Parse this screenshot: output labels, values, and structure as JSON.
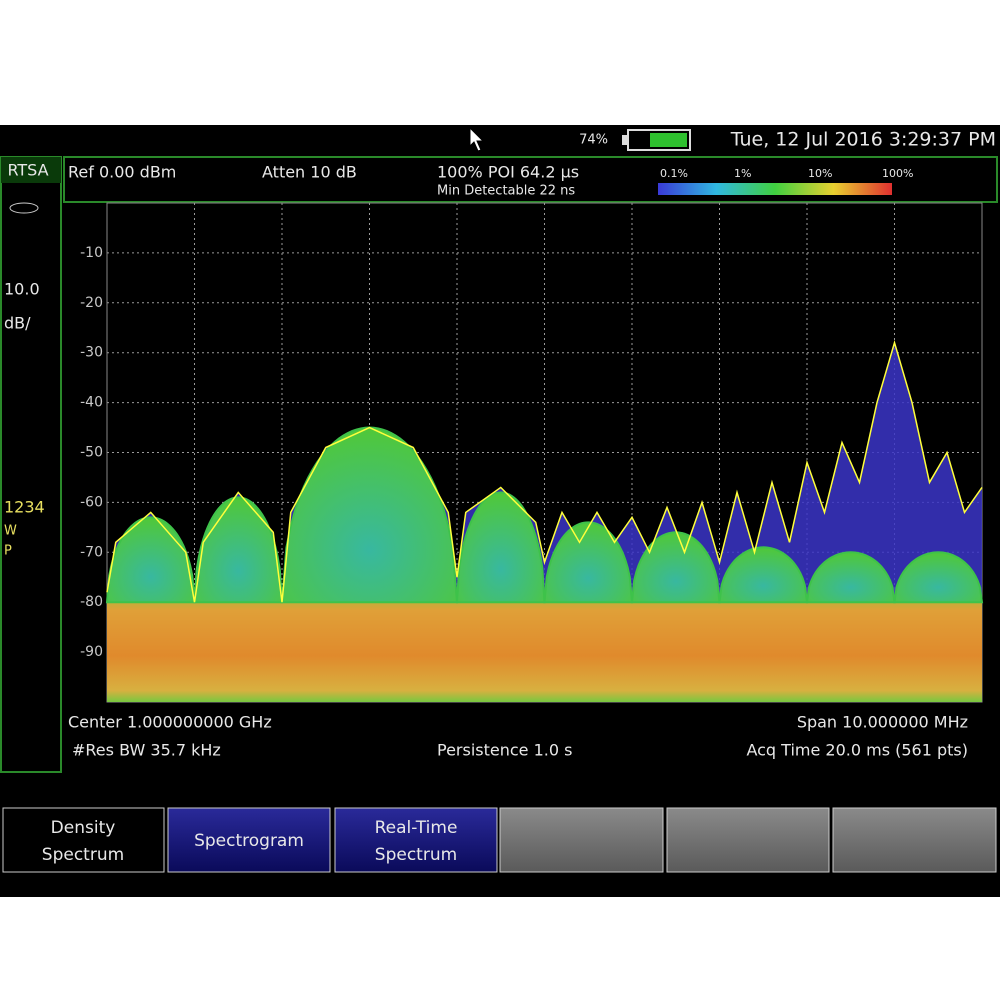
{
  "status": {
    "battery": "74%",
    "datetime": "Tue, 12 Jul 2016 3:29:37 PM"
  },
  "mode": "RTSA",
  "left_panel": {
    "scale": "10.0",
    "scale_unit": "dB/",
    "traces": "1234",
    "trace_w": "W",
    "trace_p": "P"
  },
  "header": {
    "ref": "Ref 0.00 dBm",
    "atten": "Atten 10 dB",
    "poi": "100% POI 64.2 µs",
    "min_detectable": "Min Detectable 22 ns",
    "scale_labels": [
      "0.1%",
      "1%",
      "10%",
      "100%"
    ]
  },
  "plot": {
    "xlim": [
      -5,
      5
    ],
    "ylim": [
      -100,
      0
    ],
    "yticks": [
      -10,
      -20,
      -30,
      -40,
      -50,
      -60,
      -70,
      -80,
      -90
    ],
    "grid": true,
    "noise_band": {
      "color": "#e0922e",
      "range": [
        -100,
        -77
      ]
    },
    "overflow_color": "#3b35c8",
    "lobes": {
      "color": "#3ec24a",
      "edges": [
        -5,
        -4,
        -3,
        -1,
        0,
        1,
        2,
        3,
        4,
        5
      ],
      "peaks": [
        -63,
        -59,
        -45,
        -58,
        -64,
        -66,
        -69,
        -70,
        -70
      ],
      "floor": -80
    },
    "trace": {
      "color": "#ffff3c",
      "x": [
        -5,
        -4.9,
        -4.5,
        -4.1,
        -4,
        -3.9,
        -3.5,
        -3.1,
        -3,
        -2.9,
        -2.5,
        -2,
        -1.5,
        -1.1,
        -1,
        -0.9,
        -0.5,
        -0.1,
        0,
        0.2,
        0.4,
        0.6,
        0.8,
        1,
        1.2,
        1.4,
        1.6,
        1.8,
        2,
        2.2,
        2.4,
        2.6,
        2.8,
        3,
        3.2,
        3.4,
        3.6,
        3.8,
        3.9,
        4,
        4.1,
        4.2,
        4.4,
        4.6,
        4.8,
        5
      ],
      "values": [
        -78,
        -68,
        -62,
        -70,
        -80,
        -68,
        -58,
        -66,
        -80,
        -62,
        -49,
        -45,
        -49,
        -62,
        -75,
        -62,
        -57,
        -64,
        -72,
        -62,
        -68,
        -62,
        -68,
        -63,
        -70,
        -61,
        -70,
        -60,
        -72,
        -58,
        -70,
        -56,
        -68,
        -52,
        -62,
        -48,
        -56,
        -40,
        -34,
        -28,
        -34,
        -40,
        -56,
        -50,
        -62,
        -57
      ]
    }
  },
  "footer": {
    "center": "Center 1.000000000 GHz",
    "span": "Span 10.000000 MHz",
    "rbw": "#Res BW 35.7 kHz",
    "persistence": "Persistence 1.0  s",
    "acq": "Acq Time 20.0 ms (561 pts)"
  },
  "softkeys": {
    "density": [
      "Density",
      "Spectrum"
    ],
    "spectrogram": "Spectrogram",
    "realtime": [
      "Real-Time",
      "Spectrum"
    ]
  }
}
